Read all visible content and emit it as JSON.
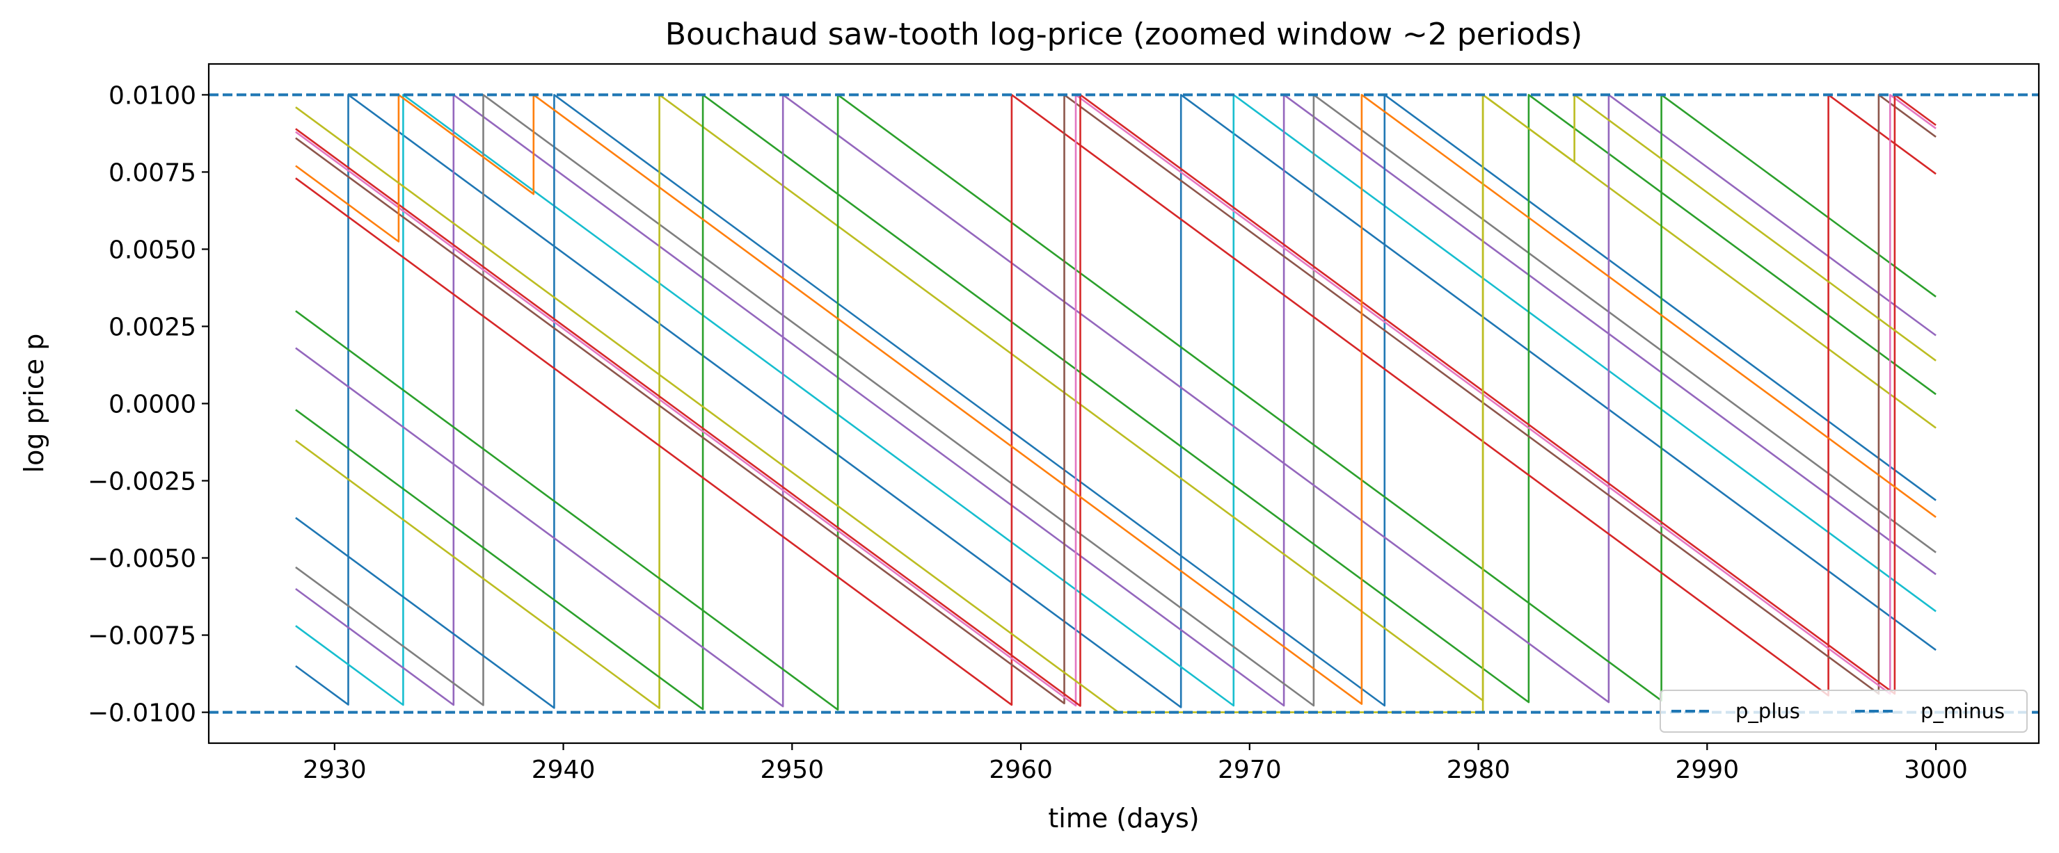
{
  "chart_data": {
    "type": "line",
    "title": "Bouchaud saw-tooth log-price (zoomed window ~2 periods)",
    "xlabel": "time (days)",
    "ylabel": "log price p",
    "xlim": [
      2924.5,
      3004.5
    ],
    "ylim": [
      -0.011,
      0.011
    ],
    "xticks": [
      2930,
      2940,
      2950,
      2960,
      2970,
      2980,
      2990,
      3000
    ],
    "xtick_labels": [
      "2930",
      "2940",
      "2950",
      "2960",
      "2970",
      "2980",
      "2990",
      "3000"
    ],
    "yticks": [
      0.01,
      0.0075,
      0.005,
      0.0025,
      0.0,
      -0.0025,
      -0.005,
      -0.0075,
      -0.01
    ],
    "ytick_labels": [
      "0.0100",
      "0.0075",
      "0.0050",
      "0.0025",
      "0.0000",
      "−0.0025",
      "−0.0050",
      "−0.0075",
      "−0.0100"
    ],
    "grid": false,
    "legend": {
      "placement": "lower-right",
      "columns": 2
    },
    "x_start": 2928.3,
    "x_end": 3000.0,
    "slope_per_day": -0.000545,
    "bands": [
      {
        "name": "p_plus",
        "y": 0.01,
        "style": "dashed",
        "color": "#1f77b4"
      },
      {
        "name": "p_minus",
        "y": -0.01,
        "style": "dashed",
        "color": "#1f77b4"
      }
    ],
    "series": [
      {
        "color": "#1f77b4",
        "y0": -0.0085,
        "jumps": [
          2930.6,
          2967.0
        ],
        "extra_jumps": []
      },
      {
        "color": "#17becf",
        "y0": -0.0072,
        "jumps": [
          2933.0,
          2969.3
        ],
        "extra_jumps": []
      },
      {
        "color": "#9467bd",
        "y0": -0.006,
        "jumps": [
          2935.2,
          2971.5
        ],
        "extra_jumps": []
      },
      {
        "color": "#7f7f7f",
        "y0": -0.0053,
        "jumps": [
          2936.5,
          2972.8
        ],
        "extra_jumps": []
      },
      {
        "color": "#1f77b4",
        "y0": -0.0037,
        "jumps": [
          2939.6,
          2975.9
        ],
        "extra_jumps": []
      },
      {
        "color": "#bcbd22",
        "y0": -0.0012,
        "jumps": [
          2944.2,
          2980.2
        ],
        "extra_jumps": []
      },
      {
        "color": "#2ca02c",
        "y0": -0.0002,
        "jumps": [
          2946.1,
          2982.2
        ],
        "extra_jumps": []
      },
      {
        "color": "#9467bd",
        "y0": 0.0018,
        "jumps": [
          2949.6,
          2985.7
        ],
        "extra_jumps": []
      },
      {
        "color": "#2ca02c",
        "y0": 0.003,
        "jumps": [
          2952.0,
          2988.0
        ],
        "extra_jumps": []
      },
      {
        "color": "#d62728",
        "y0": 0.0073,
        "jumps": [
          2959.6,
          2995.3
        ],
        "extra_jumps": []
      },
      {
        "color": "#8c564b",
        "y0": 0.0086,
        "jumps": [
          2961.9,
          2997.5
        ],
        "extra_jumps": []
      },
      {
        "color": "#e377c2",
        "y0": 0.0088,
        "jumps": [
          2962.4,
          2998.0
        ],
        "extra_jumps": []
      },
      {
        "color": "#d62728",
        "y0": 0.0089,
        "jumps": [
          2962.6,
          2998.2
        ],
        "extra_jumps": []
      },
      {
        "color": "#ff7f0e",
        "y0": 0.0077,
        "jumps": [
          2974.9
        ],
        "extra_jumps": [
          [
            2932.8,
            0.01
          ],
          [
            2938.7,
            0.01
          ]
        ]
      },
      {
        "color": "#bcbd22",
        "y0": 0.0096,
        "jumps": [
          2980.2
        ],
        "extra_jumps": [
          [
            2984.2,
            0.01
          ]
        ]
      }
    ]
  }
}
